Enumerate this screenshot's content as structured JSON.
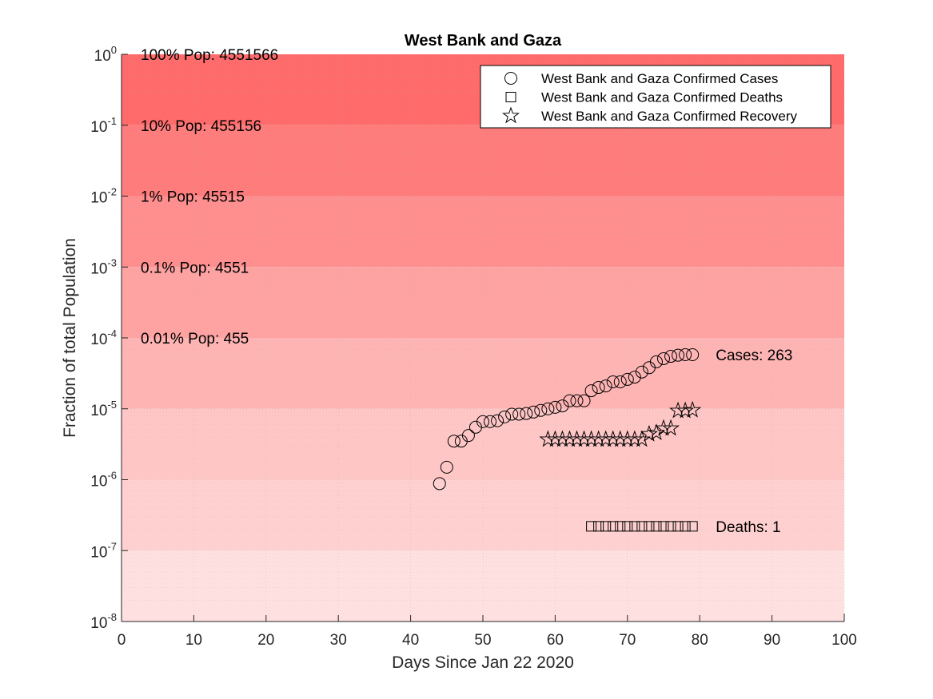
{
  "chart_data": {
    "type": "scatter",
    "title": "West Bank and Gaza",
    "xlabel": "Days Since Jan 22 2020",
    "ylabel": "Fraction of total Population",
    "xlim": [
      0,
      100
    ],
    "ylim_log10": [
      -8,
      0
    ],
    "y_scale": "log",
    "x_ticks": [
      "0",
      "10",
      "20",
      "30",
      "40",
      "50",
      "60",
      "70",
      "80",
      "90",
      "100"
    ],
    "y_ticks": [
      {
        "base": "10",
        "exp": "0",
        "log10": 0
      },
      {
        "base": "10",
        "exp": "-1",
        "log10": -1
      },
      {
        "base": "10",
        "exp": "-2",
        "log10": -2
      },
      {
        "base": "10",
        "exp": "-3",
        "log10": -3
      },
      {
        "base": "10",
        "exp": "-4",
        "log10": -4
      },
      {
        "base": "10",
        "exp": "-5",
        "log10": -5
      },
      {
        "base": "10",
        "exp": "-6",
        "log10": -6
      },
      {
        "base": "10",
        "exp": "-7",
        "log10": -7
      },
      {
        "base": "10",
        "exp": "-8",
        "log10": -8
      }
    ],
    "bands": [
      {
        "from": -1,
        "to": 0,
        "color": "#ff6a6a",
        "label": "100% Pop: 4551566",
        "label_at": 0
      },
      {
        "from": -2,
        "to": -1,
        "color": "#ff7c7c",
        "label": "10% Pop: 455156",
        "label_at": -1
      },
      {
        "from": -3,
        "to": -2,
        "color": "#ff8f8f",
        "label": "1% Pop: 45515",
        "label_at": -2
      },
      {
        "from": -4,
        "to": -3,
        "color": "#ffa2a2",
        "label": "0.1% Pop: 4551",
        "label_at": -3
      },
      {
        "from": -5,
        "to": -4,
        "color": "#ffb4b4",
        "label": "0.01% Pop: 455",
        "label_at": -4
      },
      {
        "from": -6,
        "to": -5,
        "color": "#ffc6c6",
        "label": "",
        "label_at": -5
      },
      {
        "from": -7,
        "to": -6,
        "color": "#ffd0d0",
        "label": "",
        "label_at": -6
      },
      {
        "from": -8,
        "to": -7,
        "color": "#ffe0e0",
        "label": "",
        "label_at": -7
      }
    ],
    "series": [
      {
        "name": "West Bank and Gaza Confirmed Cases",
        "marker": "circle",
        "x": [
          44,
          45,
          46,
          47,
          48,
          49,
          50,
          51,
          52,
          53,
          54,
          55,
          56,
          57,
          58,
          59,
          60,
          61,
          62,
          63,
          64,
          65,
          66,
          67,
          68,
          69,
          70,
          71,
          72,
          73,
          74,
          75,
          76,
          77,
          78,
          79
        ],
        "y": [
          8.8e-07,
          1.5e-06,
          3.5e-06,
          3.5e-06,
          4.2e-06,
          5.5e-06,
          6.6e-06,
          6.6e-06,
          6.8e-06,
          7.7e-06,
          8.4e-06,
          8.4e-06,
          8.6e-06,
          9e-06,
          9.5e-06,
          1e-05,
          1.05e-05,
          1.1e-05,
          1.3e-05,
          1.3e-05,
          1.3e-05,
          1.8e-05,
          2e-05,
          2.1e-05,
          2.4e-05,
          2.4e-05,
          2.6e-05,
          2.8e-05,
          3.3e-05,
          3.8e-05,
          4.6e-05,
          5.1e-05,
          5.5e-05,
          5.7e-05,
          5.8e-05,
          5.8e-05
        ]
      },
      {
        "name": "West Bank and Gaza Confirmed Deaths",
        "marker": "square",
        "x": [
          65,
          66,
          67,
          68,
          69,
          70,
          71,
          72,
          73,
          74,
          75,
          76,
          77,
          78,
          79
        ],
        "y": [
          2.2e-07,
          2.2e-07,
          2.2e-07,
          2.2e-07,
          2.2e-07,
          2.2e-07,
          2.2e-07,
          2.2e-07,
          2.2e-07,
          2.2e-07,
          2.2e-07,
          2.2e-07,
          2.2e-07,
          2.2e-07,
          2.2e-07
        ]
      },
      {
        "name": "West Bank and Gaza Confirmed Recovery",
        "marker": "star",
        "x": [
          59,
          60,
          61,
          62,
          63,
          64,
          65,
          66,
          67,
          68,
          69,
          70,
          71,
          72,
          73,
          74,
          75,
          76,
          77,
          78,
          79
        ],
        "y": [
          3.7e-06,
          3.7e-06,
          3.7e-06,
          3.7e-06,
          3.7e-06,
          3.7e-06,
          3.7e-06,
          3.7e-06,
          3.7e-06,
          3.7e-06,
          3.7e-06,
          3.7e-06,
          3.7e-06,
          3.7e-06,
          4.4e-06,
          4.6e-06,
          5.3e-06,
          5.3e-06,
          9.4e-06,
          9.4e-06,
          9.6e-06
        ]
      }
    ],
    "annotations": [
      {
        "text": "Cases: 263",
        "x": 82,
        "y": 5.8e-05
      },
      {
        "text": "Deaths: 1",
        "x": 82,
        "y": 2.2e-07
      }
    ],
    "legend_position": "top-right",
    "grid": true
  }
}
